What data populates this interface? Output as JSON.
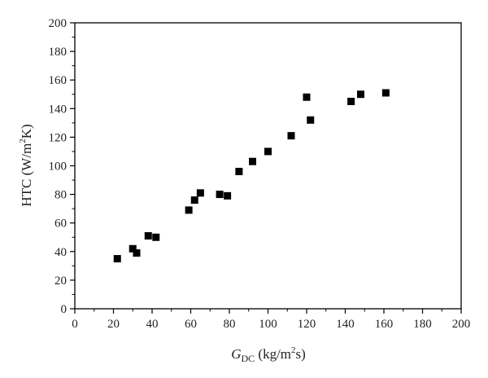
{
  "chart_data": {
    "type": "scatter",
    "title": "",
    "xlabel": {
      "main": "G",
      "sub": "DC",
      "unit_pre": " (kg/m",
      "unit_sup": "2",
      "unit_post": "s)"
    },
    "ylabel": {
      "pre": "HTC (W/m",
      "sup": "2",
      "post": "K)"
    },
    "xlim": [
      0,
      200
    ],
    "ylim": [
      0,
      200
    ],
    "xticks": [
      0,
      20,
      40,
      60,
      80,
      100,
      120,
      140,
      160,
      180,
      200
    ],
    "yticks": [
      0,
      20,
      40,
      60,
      80,
      100,
      120,
      140,
      160,
      180,
      200
    ],
    "grid": false,
    "marker": "square",
    "marker_color": "#000000",
    "x": [
      22,
      30,
      32,
      38,
      42,
      59,
      62,
      65,
      75,
      79,
      85,
      92,
      100,
      112,
      120,
      122,
      143,
      148,
      161
    ],
    "y": [
      35,
      42,
      39,
      51,
      50,
      69,
      76,
      81,
      80,
      79,
      96,
      103,
      110,
      121,
      148,
      132,
      145,
      150,
      151
    ]
  }
}
